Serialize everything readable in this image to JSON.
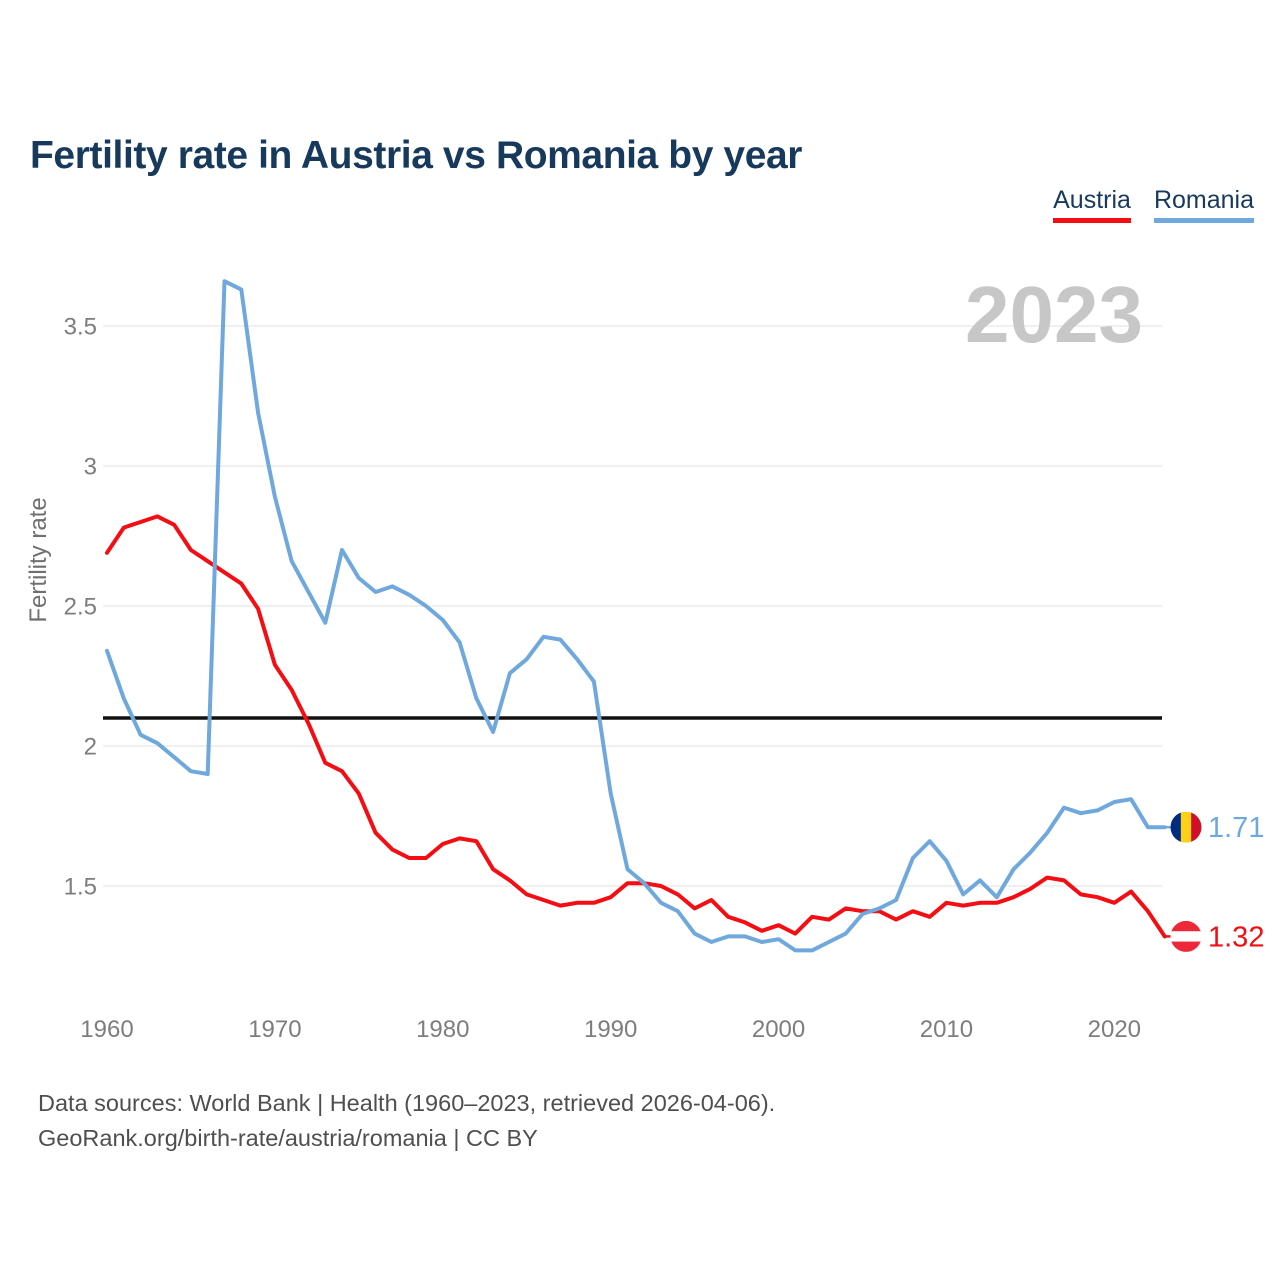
{
  "title": "Fertility rate in Austria vs Romania by year",
  "watermark_year": "2023",
  "legend": {
    "items": [
      {
        "label": "Austria",
        "color": "#f40d12"
      },
      {
        "label": "Romania",
        "color": "#6fa8dc"
      }
    ]
  },
  "end_labels": [
    {
      "series": "Romania",
      "value": "1.71",
      "flag": "romania"
    },
    {
      "series": "Austria",
      "value": "1.32",
      "flag": "austria"
    }
  ],
  "flag_colors": {
    "romania": [
      "#002B7F",
      "#FCD116",
      "#CE1126"
    ],
    "austria": [
      "#ED2939",
      "#FFFFFF",
      "#ED2939"
    ]
  },
  "footer": {
    "line1": "Data sources: World Bank | Health (1960–2023, retrieved 2026-04-06).",
    "line2": "GeoRank.org/birth-rate/austria/romania | CC BY"
  },
  "chart_data": {
    "type": "line",
    "title": "Fertility rate in Austria vs Romania by year",
    "xlabel": "",
    "ylabel": "Fertility rate",
    "grid": "horizontal",
    "legend_position": "top-right",
    "xlim": [
      1960,
      2023
    ],
    "ylim": [
      1.2,
      3.78
    ],
    "yticks": [
      1.5,
      2,
      2.5,
      3,
      3.5
    ],
    "xticks": [
      1960,
      1970,
      1980,
      1990,
      2000,
      2010,
      2020
    ],
    "reference_line": {
      "value": 2.1,
      "color": "#111111"
    },
    "x": [
      1960,
      1961,
      1962,
      1963,
      1964,
      1965,
      1966,
      1967,
      1968,
      1969,
      1970,
      1971,
      1972,
      1973,
      1974,
      1975,
      1976,
      1977,
      1978,
      1979,
      1980,
      1981,
      1982,
      1983,
      1984,
      1985,
      1986,
      1987,
      1988,
      1989,
      1990,
      1991,
      1992,
      1993,
      1994,
      1995,
      1996,
      1997,
      1998,
      1999,
      2000,
      2001,
      2002,
      2003,
      2004,
      2005,
      2006,
      2007,
      2008,
      2009,
      2010,
      2011,
      2012,
      2013,
      2014,
      2015,
      2016,
      2017,
      2018,
      2019,
      2020,
      2021,
      2022,
      2023
    ],
    "series": [
      {
        "name": "Austria",
        "color": "#f40d12",
        "values": [
          2.69,
          2.78,
          2.8,
          2.82,
          2.79,
          2.7,
          2.66,
          2.62,
          2.58,
          2.49,
          2.29,
          2.2,
          2.08,
          1.94,
          1.91,
          1.83,
          1.69,
          1.63,
          1.6,
          1.6,
          1.65,
          1.67,
          1.66,
          1.56,
          1.52,
          1.47,
          1.45,
          1.43,
          1.44,
          1.44,
          1.46,
          1.51,
          1.51,
          1.5,
          1.47,
          1.42,
          1.45,
          1.39,
          1.37,
          1.34,
          1.36,
          1.33,
          1.39,
          1.38,
          1.42,
          1.41,
          1.41,
          1.38,
          1.41,
          1.39,
          1.44,
          1.43,
          1.44,
          1.44,
          1.46,
          1.49,
          1.53,
          1.52,
          1.47,
          1.46,
          1.44,
          1.48,
          1.41,
          1.32
        ]
      },
      {
        "name": "Romania",
        "color": "#6fa8dc",
        "values": [
          2.34,
          2.17,
          2.04,
          2.01,
          1.96,
          1.91,
          1.9,
          3.66,
          3.63,
          3.19,
          2.89,
          2.66,
          2.55,
          2.44,
          2.7,
          2.6,
          2.55,
          2.57,
          2.54,
          2.5,
          2.45,
          2.37,
          2.17,
          2.05,
          2.26,
          2.31,
          2.39,
          2.38,
          2.31,
          2.23,
          1.83,
          1.56,
          1.51,
          1.44,
          1.41,
          1.33,
          1.3,
          1.32,
          1.32,
          1.3,
          1.31,
          1.27,
          1.27,
          1.3,
          1.33,
          1.4,
          1.42,
          1.45,
          1.6,
          1.66,
          1.59,
          1.47,
          1.52,
          1.46,
          1.56,
          1.62,
          1.69,
          1.78,
          1.76,
          1.77,
          1.8,
          1.81,
          1.71,
          1.71
        ]
      }
    ]
  }
}
